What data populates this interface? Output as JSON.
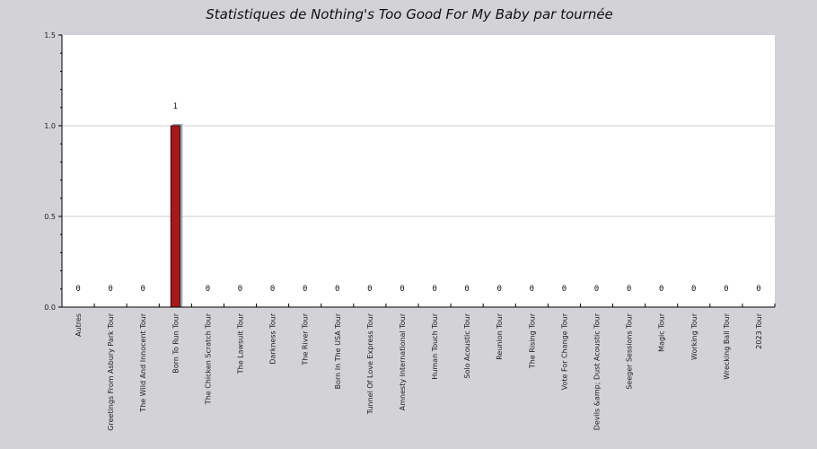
{
  "chart_data": {
    "type": "bar",
    "title": "Statistiques de Nothing's Too Good For My Baby par tournée",
    "xlabel": "",
    "ylabel": "",
    "ylim": [
      0,
      1.5
    ],
    "yticks": [
      "0.0",
      "0.5",
      "1.0",
      "1.5"
    ],
    "grid": true,
    "categories": [
      "Autres",
      "Greetings From Asbury Park Tour",
      "The Wild And Innocent Tour",
      "Born To Run Tour",
      "The Chicken Scratch Tour",
      "The Lawsuit Tour",
      "Darkness Tour",
      "The River Tour",
      "Born In The USA Tour",
      "Tunnel Of Love Express Tour",
      "Amnesty International Tour",
      "Human Touch Tour",
      "Solo Acoustic Tour",
      "Reunion Tour",
      "The Rising Tour",
      "Vote For Change Tour",
      "Devils &amp; Dust Acoustic Tour",
      "Seeger Sessions Tour",
      "Magic Tour",
      "Working Tour",
      "Wrecking Ball Tour",
      "2023 Tour"
    ],
    "values": [
      0,
      0,
      0,
      1,
      0,
      0,
      0,
      0,
      0,
      0,
      0,
      0,
      0,
      0,
      0,
      0,
      0,
      0,
      0,
      0,
      0,
      0
    ],
    "data_labels": [
      "0",
      "0",
      "0",
      "1",
      "0",
      "0",
      "0",
      "0",
      "0",
      "0",
      "0",
      "0",
      "0",
      "0",
      "0",
      "0",
      "0",
      "0",
      "0",
      "0",
      "0",
      "0"
    ],
    "colors": {
      "bar": "#a8191b",
      "bar_shadow": "#9aa7b4",
      "background": "#d3d2d7",
      "plot": "#ffffff",
      "grid": "#cccccc"
    }
  }
}
